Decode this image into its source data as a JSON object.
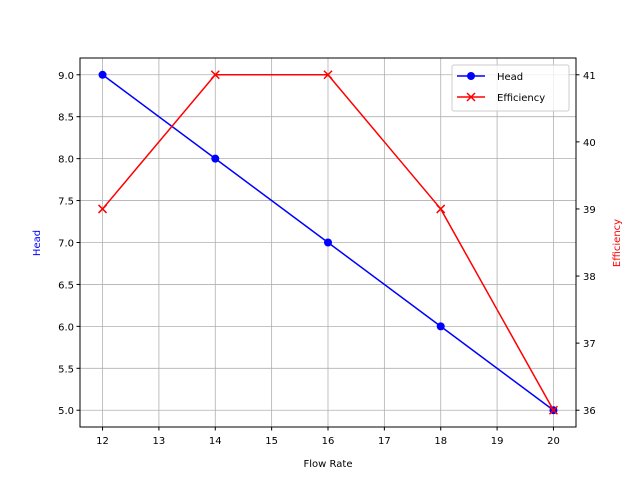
{
  "chart_data": {
    "type": "line",
    "title": "",
    "xlabel": "Flow Rate",
    "ylabel_left": "Head",
    "ylabel_right": "Efficiency",
    "x": [
      12,
      14,
      16,
      18,
      20
    ],
    "xlim": [
      11.6,
      20.4
    ],
    "ylim_left": [
      4.8,
      9.2
    ],
    "ylim_right": [
      35.75,
      41.25
    ],
    "xticks": [
      12,
      13,
      14,
      15,
      16,
      17,
      18,
      19,
      20
    ],
    "yticks_left": [
      "5.0",
      "5.5",
      "6.0",
      "6.5",
      "7.0",
      "7.5",
      "8.0",
      "8.5",
      "9.0"
    ],
    "yticks_right": [
      36,
      37,
      38,
      39,
      40,
      41
    ],
    "grid": true,
    "legend_placement": "top-right",
    "series": [
      {
        "name": "Head",
        "axis": "left",
        "color": "#0000ff",
        "marker": "o",
        "values": [
          9,
          8,
          7,
          6,
          5
        ]
      },
      {
        "name": "Efficiency",
        "axis": "right",
        "color": "#ff0000",
        "marker": "x",
        "values": [
          39,
          41,
          41,
          39,
          36
        ]
      }
    ]
  }
}
